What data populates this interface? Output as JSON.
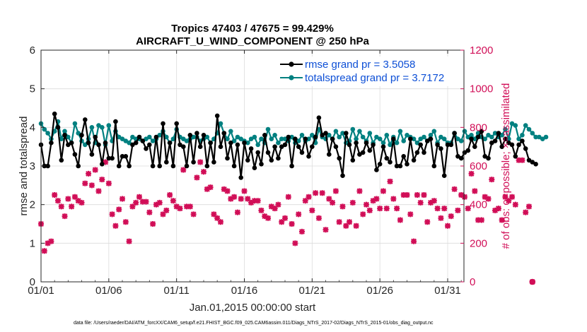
{
  "chart_data": {
    "type": "line",
    "title": "Tropics 47403 / 47675 = 99.429%",
    "subtitle": "AIRCRAFT_U_WIND_COMPONENT @ 250 hPa",
    "xlabel": "Jan.01,2015 00:00:00 start",
    "ylabel_left": "rmse and totalspread",
    "ylabel_right": "# of obs: o=possible; ×=assimilated",
    "x_ticks": [
      "01/01",
      "01/06",
      "01/11",
      "01/16",
      "01/21",
      "01/26",
      "01/31"
    ],
    "x_range_days": [
      0,
      31.2
    ],
    "y_left_ticks": [
      "0",
      "1",
      "2",
      "3",
      "4",
      "5",
      "6"
    ],
    "y_left_range": [
      0,
      6
    ],
    "y_right_ticks": [
      "0",
      "200",
      "400",
      "600",
      "800",
      "1000",
      "1200"
    ],
    "y_right_range": [
      0,
      1200
    ],
    "footnote": "data file: /Users/raeder/DAI/ATM_forcXX/CAM6_setup/f.e21.FHIST_BGC.f09_025.CAM6assim.011/Diags_NTrS_2017-02/Diags_NTrS_2015-01/obs_diag_output.nc",
    "series": [
      {
        "name": "rmse",
        "legend": "rmse grand pr = 3.5058",
        "color": "#000000",
        "axis": "left",
        "x_start_day": 0,
        "x_step_day": 0.25,
        "values": [
          3.55,
          3.0,
          3.0,
          3.6,
          4.35,
          4.0,
          3.15,
          3.8,
          3.55,
          3.6,
          3.3,
          3.0,
          3.8,
          4.2,
          3.6,
          3.3,
          3.75,
          3.55,
          3.05,
          3.6,
          3.2,
          3.2,
          4.15,
          3.0,
          3.25,
          3.25,
          3.0,
          3.55,
          3.6,
          3.75,
          3.65,
          3.45,
          3.55,
          3.0,
          3.75,
          3.0,
          4.1,
          3.1,
          3.6,
          3.0,
          4.1,
          3.55,
          3.5,
          3.0,
          3.8,
          3.1,
          3.85,
          3.5,
          3.8,
          3.0,
          3.6,
          3.1,
          4.3,
          3.5,
          3.85,
          3.2,
          3.6,
          3.0,
          3.55,
          2.7,
          3.6,
          3.15,
          3.45,
          2.95,
          3.35,
          3.05,
          3.8,
          3.35,
          3.15,
          3.5,
          3.2,
          3.5,
          3.55,
          3.75,
          3.0,
          3.7,
          3.5,
          3.35,
          3.7,
          3.25,
          3.5,
          3.75,
          4.25,
          3.8,
          3.85,
          3.3,
          3.7,
          3.5,
          3.2,
          2.75,
          3.85,
          3.55,
          3.15,
          3.6,
          3.3,
          3.35,
          3.6,
          3.4,
          3.55,
          2.9,
          3.05,
          3.5,
          3.2,
          3.1,
          3.7,
          3.0,
          3.0,
          3.25,
          3.05,
          3.7,
          3.15,
          3.35,
          3.55,
          3.35,
          3.65,
          3.7,
          3.0,
          3.55,
          3.45,
          2.75,
          3.55,
          3.55,
          3.85,
          3.25,
          3.2,
          3.35,
          3.4,
          3.7,
          3.5,
          3.75,
          3.9,
          3.25,
          3.2,
          3.6,
          3.65,
          3.85,
          3.5,
          3.7,
          3.6,
          3.55,
          3.25,
          3.55,
          3.65,
          3.45,
          3.15,
          3.1,
          3.05
        ]
      },
      {
        "name": "totalspread",
        "legend": "totalspread grand pr = 3.7172",
        "color": "#008080",
        "axis": "left",
        "x_start_day": 0,
        "x_step_day": 0.25,
        "values": [
          4.1,
          3.95,
          3.85,
          3.7,
          3.9,
          4.15,
          3.7,
          3.9,
          3.75,
          3.6,
          4.1,
          3.85,
          3.65,
          3.55,
          3.7,
          4.0,
          3.6,
          4.05,
          4.0,
          3.55,
          4.05,
          3.65,
          3.9,
          3.75,
          3.7,
          3.65,
          3.6,
          3.75,
          3.7,
          3.7,
          3.65,
          3.7,
          3.75,
          3.65,
          3.7,
          3.8,
          3.9,
          3.75,
          3.6,
          3.7,
          3.95,
          3.75,
          3.7,
          3.65,
          3.7,
          3.75,
          3.75,
          3.65,
          3.7,
          3.75,
          3.6,
          3.7,
          3.85,
          4.1,
          3.85,
          3.7,
          3.9,
          3.65,
          3.75,
          3.7,
          3.65,
          3.6,
          3.7,
          3.75,
          3.55,
          3.7,
          3.6,
          3.95,
          3.7,
          3.8,
          3.6,
          3.7,
          3.7,
          3.65,
          3.75,
          3.6,
          3.65,
          3.8,
          3.65,
          3.7,
          3.8,
          3.6,
          3.95,
          3.75,
          3.7,
          3.8,
          3.7,
          3.9,
          3.75,
          3.85,
          3.6,
          3.65,
          3.95,
          3.7,
          3.9,
          3.75,
          3.65,
          3.85,
          3.6,
          3.75,
          3.7,
          3.6,
          3.8,
          3.55,
          3.75,
          3.6,
          3.9,
          3.65,
          3.8,
          3.75,
          3.7,
          3.6,
          3.7,
          3.75,
          3.65,
          3.8,
          3.9,
          3.6,
          3.75,
          3.7,
          3.6,
          3.6,
          3.85,
          3.7,
          3.65,
          3.9,
          3.75,
          3.8,
          3.7,
          3.85,
          3.75,
          3.7,
          3.8,
          3.75,
          3.85,
          3.75,
          3.8,
          3.95,
          3.7,
          4.1,
          4.05,
          3.7,
          3.8,
          4.05,
          3.95,
          3.85,
          3.75,
          3.75,
          3.7,
          3.75
        ]
      },
      {
        "name": "obs_assimilated",
        "marker": "×",
        "color": "#d10e57",
        "axis": "right",
        "x_start_day": 0,
        "x_step_day": 0.25,
        "values": [
          300,
          160,
          200,
          210,
          450,
          420,
          390,
          340,
          430,
          390,
          440,
          420,
          410,
          510,
          560,
          500,
          580,
          470,
          530,
          620,
          510,
          350,
          290,
          375,
          430,
          310,
          210,
          390,
          410,
          440,
          415,
          415,
          360,
          300,
          400,
          410,
          350,
          370,
          450,
          420,
          390,
          380,
          580,
          390,
          390,
          350,
          540,
          620,
          570,
          480,
          490,
          350,
          330,
          310,
          480,
          470,
          430,
          440,
          360,
          430,
          470,
          430,
          410,
          420,
          420,
          370,
          340,
          330,
          390,
          380,
          400,
          310,
          330,
          440,
          300,
          200,
          350,
          260,
          420,
          440,
          370,
          460,
          330,
          460,
          270,
          430,
          410,
          470,
          310,
          390,
          290,
          310,
          410,
          290,
          470,
          350,
          400,
          370,
          420,
          430,
          380,
          470,
          380,
          520,
          430,
          380,
          320,
          450,
          450,
          350,
          210,
          450,
          410,
          450,
          310,
          410,
          420,
          380,
          330,
          380,
          290,
          340,
          480,
          370,
          450,
          440,
          380,
          560,
          470,
          320,
          320,
          440,
          430,
          530,
          370,
          380,
          320,
          440,
          420,
          440,
          400,
          630,
          630,
          360,
          390,
          0
        ]
      }
    ]
  }
}
